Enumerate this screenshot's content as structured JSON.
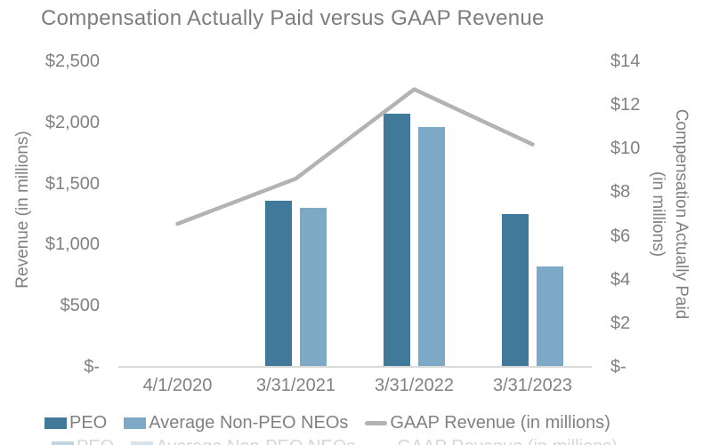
{
  "chart_data": {
    "type": "bar+line combo",
    "title": "Compensation Actually Paid versus GAAP Revenue",
    "categories": [
      "4/1/2020",
      "3/31/2021",
      "3/31/2022",
      "3/31/2023"
    ],
    "bar_series": [
      {
        "name": "PEO",
        "axis": "right",
        "color": "#41799B",
        "values": [
          null,
          7.6,
          11.6,
          7.0
        ]
      },
      {
        "name": "Average Non-PEO NEOs",
        "axis": "right",
        "color": "#7EA9C6",
        "values": [
          null,
          7.3,
          11.0,
          4.6
        ]
      }
    ],
    "line_series": {
      "name": "GAAP Revenue (in millions)",
      "axis": "left",
      "color": "#b3b3b3",
      "values": [
        1170,
        1540,
        2270,
        1820
      ]
    },
    "left_axis": {
      "label": "Revenue (in millions)",
      "min": 0,
      "max": 2500,
      "ticks": [
        "$2,500",
        "$2,000",
        "$1,500",
        "$1,000",
        "$500",
        "$-"
      ]
    },
    "right_axis": {
      "label_line1": "Compensation Actually Paid",
      "label_line2": "(in millions)",
      "min": 0,
      "max": 14,
      "ticks": [
        "$14",
        "$12",
        "$10",
        "$8",
        "$6",
        "$4",
        "$2",
        "$-"
      ]
    },
    "legend": [
      {
        "marker": "rect",
        "color": "#41799B",
        "label": "PEO"
      },
      {
        "marker": "rect",
        "color": "#7EA9C6",
        "label": "Average Non-PEO NEOs"
      },
      {
        "marker": "line",
        "color": "#b3b3b3",
        "label": "GAAP Revenue (in millions)"
      }
    ],
    "grid": false,
    "background": "#ffffff",
    "text_color": "#818181",
    "axis_line_color": "#d9d9d9"
  }
}
